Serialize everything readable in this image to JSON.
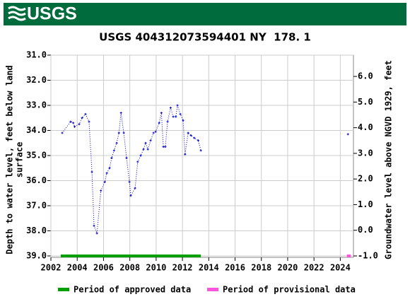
{
  "logo_text": "USGS",
  "chart_data": {
    "type": "line",
    "title": "USGS 404312073594401 NY  178. 1",
    "y_label": [
      "Depth to water level, feet below land",
      "surface"
    ],
    "y2_label": "Groundwater level above NGVD 1929, feet",
    "x": [
      2002.86,
      2003.5,
      2003.7,
      2003.8,
      2004.15,
      2004.37,
      2004.63,
      2004.9,
      2005.12,
      2005.28,
      2005.5,
      2005.8,
      2006.1,
      2006.25,
      2006.46,
      2006.62,
      2006.8,
      2007.0,
      2007.17,
      2007.33,
      2007.54,
      2007.75,
      2007.97,
      2008.07,
      2008.4,
      2008.6,
      2008.83,
      2009.04,
      2009.2,
      2009.37,
      2009.58,
      2009.8,
      2009.96,
      2010.23,
      2010.4,
      2010.55,
      2010.7,
      2010.87,
      2011.1,
      2011.3,
      2011.5,
      2011.62,
      2011.84,
      2012.05,
      2012.2,
      2012.43,
      2012.65,
      2012.9,
      2013.2,
      2013.4,
      2024.58
    ],
    "series": [
      {
        "color": "#0000cc",
        "values": [
          34.1,
          33.65,
          33.7,
          33.85,
          33.75,
          33.5,
          33.35,
          33.65,
          35.65,
          37.8,
          38.1,
          36.4,
          36.05,
          35.7,
          35.5,
          35.1,
          34.8,
          34.5,
          34.1,
          33.3,
          34.1,
          35.1,
          36.05,
          36.6,
          36.3,
          35.25,
          35.0,
          34.75,
          34.5,
          34.75,
          34.4,
          34.1,
          34.05,
          33.7,
          33.3,
          34.65,
          34.65,
          33.65,
          33.1,
          33.45,
          33.45,
          33.0,
          33.35,
          33.6,
          34.95,
          34.1,
          34.2,
          34.3,
          34.4,
          34.8,
          34.15
        ]
      }
    ],
    "periods": [
      {
        "name": "Period of approved data",
        "color": "#00a000",
        "start": 2002.75,
        "end": 2013.4
      },
      {
        "name": "Period of provisional data",
        "color": "#ff55dd",
        "start": 2024.5,
        "end": 2024.8
      }
    ],
    "xlim": [
      2002,
      2025
    ],
    "xticks": [
      2002,
      2004,
      2006,
      2008,
      2010,
      2012,
      2014,
      2016,
      2018,
      2020,
      2022,
      2024
    ],
    "ylim": [
      31,
      39
    ],
    "yticks": [
      {
        "value": 31,
        "label": "31.0"
      },
      {
        "value": 32,
        "label": "32.0"
      },
      {
        "value": 33,
        "label": "33.0"
      },
      {
        "value": 34,
        "label": "34.0"
      },
      {
        "value": 35,
        "label": "35.0"
      },
      {
        "value": 36,
        "label": "36.0"
      },
      {
        "value": 37,
        "label": "37.0"
      },
      {
        "value": 38,
        "label": "38.0"
      },
      {
        "value": 39,
        "label": "39.0"
      }
    ],
    "y2lim": [
      6.83,
      -1.0
    ],
    "y2ticks": [
      {
        "value": 6,
        "label": "6.0"
      },
      {
        "value": 5,
        "label": "5.0"
      },
      {
        "value": 4,
        "label": "4.0"
      },
      {
        "value": 3,
        "label": "3.0"
      },
      {
        "value": 2,
        "label": "2.0"
      },
      {
        "value": 1,
        "label": "1.0"
      },
      {
        "value": 0,
        "label": "0.0"
      },
      {
        "value": -1,
        "label": "-1.0"
      }
    ],
    "grid": true
  }
}
